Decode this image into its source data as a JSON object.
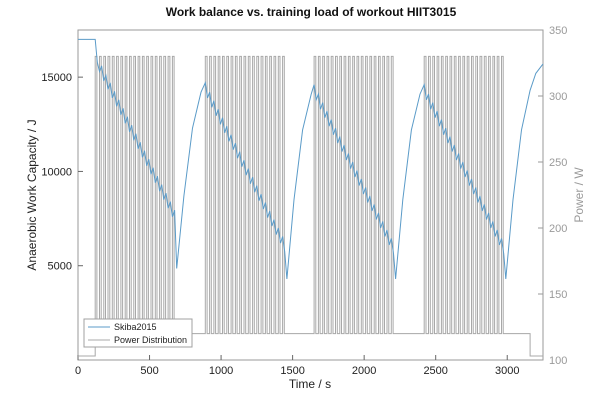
{
  "chart_data": {
    "type": "line",
    "title": "Work balance vs. training load of workout  HIIT3015",
    "xlabel": "Time / s",
    "ylabel": "Anaerobic Work Capacity / J",
    "y2label": "Power / W",
    "xlim": [
      0,
      3250
    ],
    "ylim": [
      0,
      17500
    ],
    "y2lim": [
      100,
      350
    ],
    "xticks": [
      "0",
      "500",
      "1000",
      "1500",
      "2000",
      "2500",
      "3000"
    ],
    "yticks": [
      "5000",
      "10000",
      "15000"
    ],
    "y2ticks": [
      "100",
      "150",
      "200",
      "250",
      "300",
      "350"
    ],
    "legend_position": "bottom-left",
    "colors": {
      "skiba": "#5b9bc8",
      "power": "#a8a8a8"
    },
    "series": [
      {
        "name": "Skiba2015",
        "axis": "left",
        "x": [
          0,
          120,
          135,
          150,
          165,
          180,
          195,
          210,
          225,
          240,
          255,
          270,
          285,
          300,
          315,
          330,
          345,
          360,
          375,
          390,
          405,
          420,
          435,
          450,
          465,
          480,
          495,
          510,
          525,
          540,
          555,
          570,
          585,
          600,
          615,
          630,
          645,
          660,
          675,
          690,
          740,
          800,
          860,
          890,
          905,
          920,
          935,
          950,
          965,
          980,
          995,
          1010,
          1025,
          1040,
          1055,
          1070,
          1085,
          1100,
          1115,
          1130,
          1145,
          1160,
          1175,
          1190,
          1205,
          1220,
          1235,
          1250,
          1265,
          1280,
          1295,
          1310,
          1325,
          1340,
          1355,
          1370,
          1385,
          1400,
          1415,
          1430,
          1445,
          1460,
          1510,
          1570,
          1630,
          1650,
          1665,
          1680,
          1695,
          1710,
          1725,
          1740,
          1755,
          1770,
          1785,
          1800,
          1815,
          1830,
          1845,
          1860,
          1875,
          1890,
          1905,
          1920,
          1935,
          1950,
          1965,
          1980,
          1995,
          2010,
          2025,
          2040,
          2055,
          2070,
          2085,
          2100,
          2115,
          2130,
          2145,
          2160,
          2175,
          2190,
          2205,
          2220,
          2270,
          2330,
          2390,
          2420,
          2435,
          2450,
          2465,
          2480,
          2495,
          2510,
          2525,
          2540,
          2555,
          2570,
          2585,
          2600,
          2615,
          2630,
          2645,
          2660,
          2675,
          2690,
          2705,
          2720,
          2735,
          2750,
          2765,
          2780,
          2795,
          2810,
          2825,
          2840,
          2855,
          2870,
          2885,
          2900,
          2915,
          2930,
          2945,
          2960,
          2975,
          2990,
          3040,
          3100,
          3160,
          3200,
          3250
        ],
        "y": [
          17000,
          17000,
          15800,
          15300,
          15600,
          14800,
          15100,
          14350,
          14700,
          13900,
          14250,
          13450,
          13800,
          13000,
          13350,
          12550,
          12900,
          12100,
          12450,
          11650,
          12000,
          11200,
          11550,
          10750,
          11100,
          10300,
          10650,
          9850,
          10200,
          9400,
          9750,
          8950,
          9300,
          8500,
          8850,
          8050,
          8400,
          7600,
          7950,
          4850,
          8700,
          12300,
          14200,
          14700,
          13900,
          14200,
          13400,
          13750,
          12950,
          13300,
          12500,
          12850,
          12050,
          12400,
          11600,
          11950,
          11150,
          11500,
          10700,
          11050,
          10250,
          10600,
          9800,
          10150,
          9350,
          9700,
          8900,
          9250,
          8450,
          8800,
          8000,
          8350,
          7550,
          7900,
          7100,
          7450,
          6650,
          7000,
          6200,
          6550,
          5750,
          4300,
          8500,
          12200,
          14100,
          14600,
          13800,
          14100,
          13300,
          13650,
          12850,
          13200,
          12400,
          12750,
          11950,
          12300,
          11500,
          11850,
          11050,
          11400,
          10600,
          10950,
          10150,
          10500,
          9700,
          10050,
          9250,
          9600,
          8800,
          9150,
          8350,
          8700,
          7900,
          8250,
          7450,
          7800,
          7000,
          7350,
          6550,
          6900,
          6100,
          6450,
          5650,
          4300,
          8500,
          12200,
          14100,
          14600,
          13800,
          14100,
          13300,
          13650,
          12850,
          13200,
          12400,
          12750,
          11950,
          12300,
          11500,
          11850,
          11050,
          11400,
          10600,
          10950,
          10150,
          10500,
          9700,
          10050,
          9250,
          9600,
          8800,
          9150,
          8350,
          8700,
          7900,
          8250,
          7450,
          7800,
          7000,
          7350,
          6550,
          6900,
          6100,
          6450,
          5650,
          4300,
          8500,
          12200,
          14300,
          15200,
          15700
        ]
      },
      {
        "name": "Power Distribution",
        "axis": "right",
        "segments": [
          {
            "t0": 0,
            "t1": 120,
            "p": 103
          },
          {
            "t0": 120,
            "t1": 690,
            "intervals_on": 330,
            "intervals_off": 120,
            "on_s": 12,
            "period_s": 30
          },
          {
            "t0": 690,
            "t1": 890,
            "p": 120
          },
          {
            "t0": 890,
            "t1": 1460,
            "intervals_on": 330,
            "intervals_off": 120,
            "on_s": 12,
            "period_s": 30
          },
          {
            "t0": 1460,
            "t1": 1650,
            "p": 120
          },
          {
            "t0": 1650,
            "t1": 2220,
            "intervals_on": 330,
            "intervals_off": 120,
            "on_s": 12,
            "period_s": 30
          },
          {
            "t0": 2220,
            "t1": 2420,
            "p": 120
          },
          {
            "t0": 2420,
            "t1": 2990,
            "intervals_on": 330,
            "intervals_off": 120,
            "on_s": 12,
            "period_s": 30
          },
          {
            "t0": 2990,
            "t1": 3160,
            "p": 120
          },
          {
            "t0": 3160,
            "t1": 3250,
            "p": 103
          }
        ]
      }
    ]
  }
}
